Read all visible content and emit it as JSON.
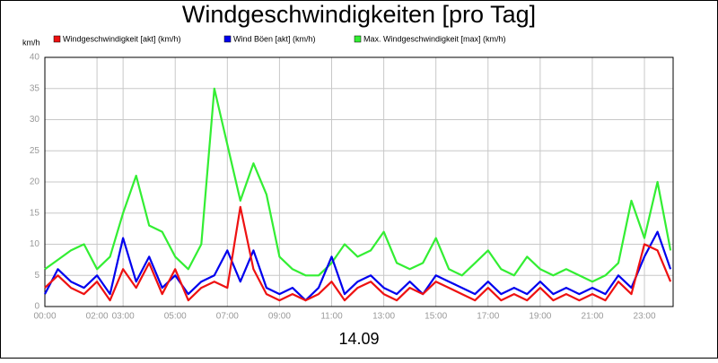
{
  "chart_data": {
    "type": "line",
    "title": "Windgeschwindigkeiten [pro Tag]",
    "y_unit": "km/h",
    "x_label": "14.09",
    "x": [
      0,
      0.5,
      1,
      1.5,
      2,
      2.5,
      3,
      3.5,
      4,
      4.5,
      5,
      5.5,
      6,
      6.5,
      7,
      7.5,
      8,
      8.5,
      9,
      9.5,
      10,
      10.5,
      11,
      11.5,
      12,
      12.5,
      13,
      13.5,
      14,
      14.5,
      15,
      15.5,
      16,
      16.5,
      17,
      17.5,
      18,
      18.5,
      19,
      19.5,
      20,
      20.5,
      21,
      21.5,
      22,
      22.5,
      23,
      23.5,
      24
    ],
    "series": [
      {
        "name": "Windgeschwindigkeit [akt] (km/h)",
        "color": "#ee1111",
        "values": [
          3,
          5,
          3,
          2,
          4,
          1,
          6,
          3,
          7,
          2,
          6,
          1,
          3,
          4,
          3,
          16,
          6,
          2,
          1,
          2,
          1,
          2,
          4,
          1,
          3,
          4,
          2,
          1,
          3,
          2,
          4,
          3,
          2,
          1,
          3,
          1,
          2,
          1,
          3,
          1,
          2,
          1,
          2,
          1,
          4,
          2,
          10,
          9,
          4
        ]
      },
      {
        "name": "Wind Böen [akt] (km/h)",
        "color": "#0000ee",
        "values": [
          2,
          6,
          4,
          3,
          5,
          2,
          11,
          4,
          8,
          3,
          5,
          2,
          4,
          5,
          9,
          4,
          9,
          3,
          2,
          3,
          1,
          3,
          8,
          2,
          4,
          5,
          3,
          2,
          4,
          2,
          5,
          4,
          3,
          2,
          4,
          2,
          3,
          2,
          4,
          2,
          3,
          2,
          3,
          2,
          5,
          3,
          8,
          12,
          6
        ]
      },
      {
        "name": "Max. Windgeschwindigkeit [max] (km/h)",
        "color": "#33ee33",
        "values": [
          6,
          7.5,
          9,
          10,
          6,
          8,
          15,
          21,
          13,
          12,
          8,
          6,
          10,
          35,
          26,
          17,
          23,
          18,
          8,
          6,
          5,
          5,
          7,
          10,
          8,
          9,
          12,
          7,
          6,
          7,
          11,
          6,
          5,
          7,
          9,
          6,
          5,
          8,
          6,
          5,
          6,
          5,
          4,
          5,
          7,
          17,
          11,
          20,
          9
        ]
      }
    ],
    "xlim": [
      0,
      24.1
    ],
    "xticks": [
      {
        "value": 0,
        "label": "00:00"
      },
      {
        "value": 2,
        "label": "02:00"
      },
      {
        "value": 3,
        "label": "03:00"
      },
      {
        "value": 5,
        "label": "05:00"
      },
      {
        "value": 7,
        "label": "07:00"
      },
      {
        "value": 9,
        "label": "09:00"
      },
      {
        "value": 11,
        "label": "11:00"
      },
      {
        "value": 13,
        "label": "13:00"
      },
      {
        "value": 15,
        "label": "15:00"
      },
      {
        "value": 17,
        "label": "17:00"
      },
      {
        "value": 19,
        "label": "19:00"
      },
      {
        "value": 21,
        "label": "21:00"
      },
      {
        "value": 23,
        "label": "23:00"
      }
    ],
    "ylim": [
      0,
      40
    ],
    "yticks": [
      0,
      5,
      10,
      15,
      20,
      25,
      30,
      35,
      40
    ],
    "grid": true
  }
}
